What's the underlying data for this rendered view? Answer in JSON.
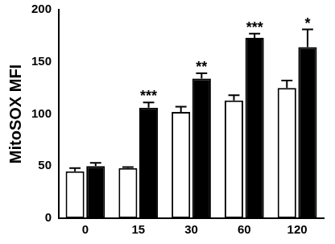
{
  "chart_data": {
    "type": "bar",
    "y_label": "MitoSOX MFI",
    "categories": [
      "0",
      "15",
      "30",
      "60",
      "120"
    ],
    "series": [
      {
        "color": "#ffffff",
        "values": [
          45,
          48,
          102,
          113,
          125
        ],
        "errors": [
          3,
          1,
          5,
          5,
          7
        ]
      },
      {
        "color": "#000000",
        "values": [
          50,
          106,
          134,
          173,
          164
        ],
        "errors": [
          3,
          5,
          5,
          4,
          17
        ]
      }
    ],
    "annotations": [
      null,
      "***",
      "**",
      "***",
      "*"
    ],
    "ylim": [
      0,
      200
    ],
    "yticks": [
      0,
      50,
      100,
      150,
      200
    ],
    "grid": false
  }
}
